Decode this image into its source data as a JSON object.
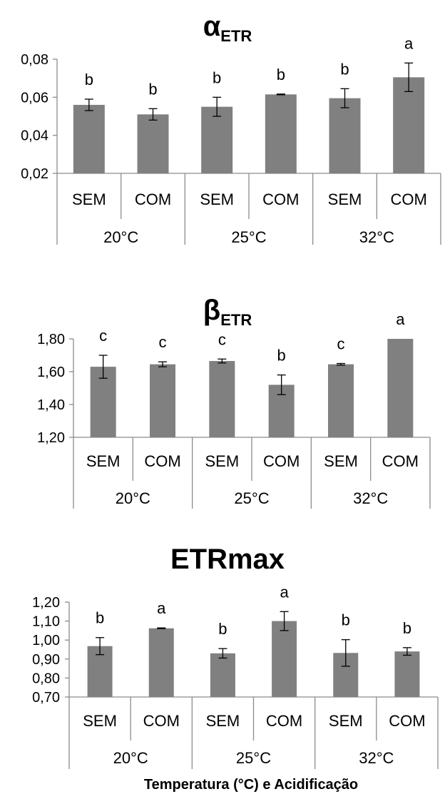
{
  "colors": {
    "bar": "#808080",
    "axis": "#8c8c8c",
    "error_bar": "#000000",
    "text": "#000000"
  },
  "xaxis_title": "Temperatura (°C) e Acidificação",
  "chart_data": [
    {
      "type": "bar",
      "title": "α",
      "title_subscript": "ETR",
      "categories": [
        "SEM",
        "COM",
        "SEM",
        "COM",
        "SEM",
        "COM"
      ],
      "groups": [
        "20°C",
        "25°C",
        "32°C"
      ],
      "values": [
        0.056,
        0.051,
        0.055,
        0.0615,
        0.0595,
        0.0705
      ],
      "errors": [
        0.003,
        0.003,
        0.005,
        0.0002,
        0.005,
        0.0075
      ],
      "significance": [
        "b",
        "b",
        "b",
        "b",
        "b",
        "a"
      ],
      "ylim": [
        0.02,
        0.08
      ],
      "yticks": [
        "0,02",
        "0,04",
        "0,06",
        "0,08"
      ],
      "grid": false,
      "legend": "none"
    },
    {
      "type": "bar",
      "title": "β",
      "title_subscript": "ETR",
      "categories": [
        "SEM",
        "COM",
        "SEM",
        "COM",
        "SEM",
        "COM"
      ],
      "groups": [
        "20°C",
        "25°C",
        "32°C"
      ],
      "values": [
        1.63,
        1.645,
        1.665,
        1.52,
        1.645,
        1.8
      ],
      "errors": [
        0.07,
        0.015,
        0.012,
        0.06,
        0.005,
        0.0
      ],
      "significance": [
        "c",
        "c",
        "c",
        "b",
        "c",
        "a"
      ],
      "ylim": [
        1.2,
        1.8
      ],
      "yticks": [
        "1,20",
        "1,40",
        "1,60",
        "1,80"
      ],
      "grid": false,
      "legend": "none"
    },
    {
      "type": "bar",
      "title": "ETRmax",
      "title_subscript": "",
      "categories": [
        "SEM",
        "COM",
        "SEM",
        "COM",
        "SEM",
        "COM"
      ],
      "groups": [
        "20°C",
        "25°C",
        "32°C"
      ],
      "values": [
        0.968,
        1.062,
        0.93,
        1.1,
        0.932,
        0.94
      ],
      "errors": [
        0.045,
        0.002,
        0.025,
        0.05,
        0.07,
        0.02
      ],
      "significance": [
        "b",
        "a",
        "b",
        "a",
        "b",
        "b"
      ],
      "ylim": [
        0.7,
        1.2
      ],
      "yticks": [
        "0,70",
        "0,80",
        "0,90",
        "1,00",
        "1,10",
        "1,20"
      ],
      "grid": false,
      "legend": "none"
    }
  ]
}
